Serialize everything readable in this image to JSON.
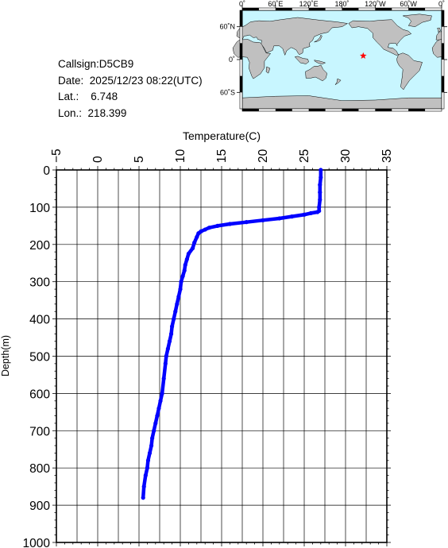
{
  "station": {
    "callsign_label": "Callsign:",
    "callsign": "D5CB9",
    "date_label": "Date:",
    "date": "2025/12/23 08:22(UTC)",
    "lat_label": "Lat.:",
    "lat": "6.748",
    "lon_label": "Lon.:",
    "lon": "218.399"
  },
  "map": {
    "lon_ticks": [
      "0˚",
      "60˚E",
      "120˚E",
      "180˚",
      "120˚W",
      "60˚W",
      "0˚"
    ],
    "lat_ticks": [
      "60˚N",
      "0˚",
      "60˚S"
    ],
    "marker_lat": 6.748,
    "marker_lon": 218.399,
    "colors": {
      "ocean": "#c8f6ff",
      "land": "#c0c0c0",
      "marker": "#ff0000"
    }
  },
  "chart_data": {
    "type": "line",
    "title": "",
    "xlabel": "Temperature(C)",
    "ylabel": "Depth(m)",
    "xlim": [
      -5,
      35
    ],
    "ylim": [
      0,
      1000
    ],
    "y_inverted": true,
    "x_axis_position": "top",
    "grid": true,
    "xticks": [
      "-5",
      "0",
      "5",
      "10",
      "15",
      "20",
      "25",
      "30",
      "35"
    ],
    "yticks": [
      "0",
      "100",
      "200",
      "300",
      "400",
      "500",
      "600",
      "700",
      "800",
      "900",
      "1000"
    ],
    "series": [
      {
        "color": "#0000ff",
        "temperature": [
          27.0,
          27.0,
          26.9,
          26.9,
          26.9,
          26.8,
          26.8,
          26.6,
          25.8,
          25.0,
          23.5,
          22.0,
          20.0,
          18.0,
          16.0,
          14.5,
          13.5,
          13.0,
          12.5,
          12.2,
          12.0,
          11.7,
          11.5,
          11.0,
          10.8,
          10.6,
          10.5,
          10.3,
          10.1,
          10.0,
          9.8,
          9.6,
          9.4,
          9.2,
          9.0,
          8.9,
          8.7,
          8.5,
          8.3,
          8.2,
          8.0,
          7.8,
          7.6,
          7.4,
          7.2,
          7.0,
          6.8,
          6.6,
          6.5,
          6.3,
          6.1,
          6.0,
          5.8,
          5.6,
          5.5
        ],
        "depth": [
          0,
          20,
          40,
          60,
          80,
          100,
          110,
          113,
          116,
          120,
          125,
          130,
          135,
          140,
          145,
          150,
          155,
          160,
          165,
          170,
          180,
          195,
          210,
          225,
          240,
          255,
          270,
          285,
          300,
          320,
          340,
          360,
          380,
          400,
          420,
          440,
          460,
          480,
          500,
          520,
          560,
          600,
          620,
          640,
          660,
          680,
          700,
          720,
          740,
          760,
          780,
          800,
          820,
          850,
          880
        ]
      }
    ]
  }
}
